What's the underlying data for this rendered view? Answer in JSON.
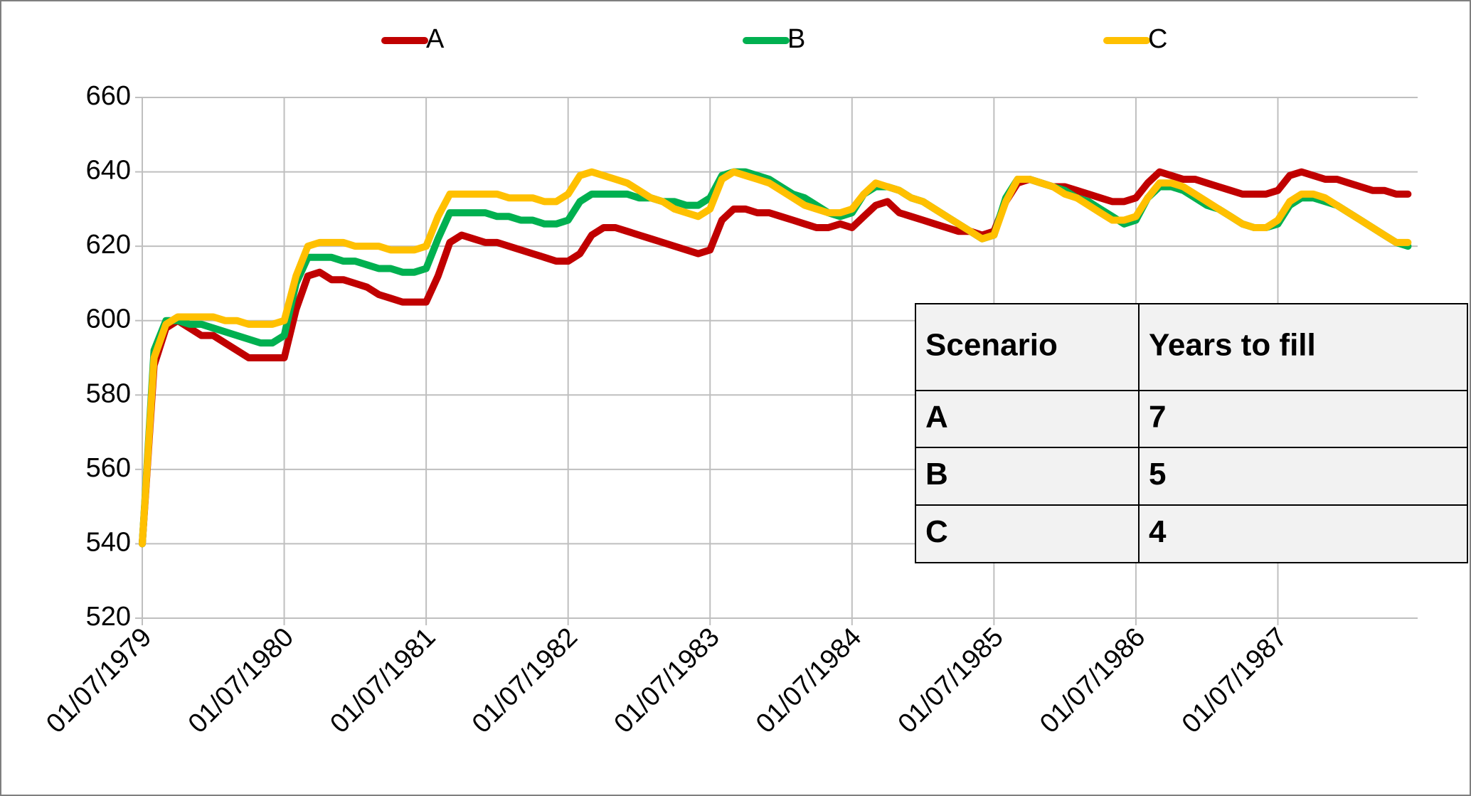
{
  "chart_data": {
    "type": "line",
    "categories": [
      "01/07/1979",
      null,
      null,
      null,
      null,
      null,
      null,
      null,
      null,
      null,
      null,
      null,
      "01/07/1980",
      null,
      null,
      null,
      null,
      null,
      null,
      null,
      null,
      null,
      null,
      null,
      "01/07/1981",
      null,
      null,
      null,
      null,
      null,
      null,
      null,
      null,
      null,
      null,
      null,
      "01/07/1982",
      null,
      null,
      null,
      null,
      null,
      null,
      null,
      null,
      null,
      null,
      null,
      "01/07/1983",
      null,
      null,
      null,
      null,
      null,
      null,
      null,
      null,
      null,
      null,
      null,
      "01/07/1984",
      null,
      null,
      null,
      null,
      null,
      null,
      null,
      null,
      null,
      null,
      null,
      "01/07/1985",
      null,
      null,
      null,
      null,
      null,
      null,
      null,
      null,
      null,
      null,
      null,
      "01/07/1986",
      null,
      null,
      null,
      null,
      null,
      null,
      null,
      null,
      null,
      null,
      null,
      "01/07/1987",
      null,
      null,
      null,
      null,
      null,
      null,
      null,
      null,
      null,
      null,
      null
    ],
    "series": [
      {
        "name": "A",
        "color": "#c00000",
        "values": [
          540,
          588,
          598,
          600,
          598,
          596,
          596,
          594,
          592,
          590,
          590,
          590,
          590,
          603,
          612,
          613,
          611,
          611,
          610,
          609,
          607,
          606,
          605,
          605,
          605,
          612,
          621,
          623,
          622,
          621,
          621,
          620,
          619,
          618,
          617,
          616,
          616,
          618,
          623,
          625,
          625,
          624,
          623,
          622,
          621,
          620,
          619,
          618,
          619,
          627,
          630,
          630,
          629,
          629,
          628,
          627,
          626,
          625,
          625,
          626,
          625,
          628,
          631,
          632,
          629,
          628,
          627,
          626,
          625,
          624,
          624,
          623,
          624,
          632,
          637,
          638,
          637,
          636,
          636,
          635,
          634,
          633,
          632,
          632,
          633,
          637,
          640,
          639,
          638,
          638,
          637,
          636,
          635,
          634,
          634,
          634,
          635,
          639,
          640,
          639,
          638,
          638,
          637,
          636,
          635,
          635,
          634,
          634
        ]
      },
      {
        "name": "B",
        "color": "#00b050",
        "values": [
          540,
          592,
          600,
          600,
          599,
          599,
          598,
          597,
          596,
          595,
          594,
          594,
          596,
          610,
          617,
          617,
          617,
          616,
          616,
          615,
          614,
          614,
          613,
          613,
          614,
          622,
          629,
          629,
          629,
          629,
          628,
          628,
          627,
          627,
          626,
          626,
          627,
          632,
          634,
          634,
          634,
          634,
          633,
          633,
          632,
          632,
          631,
          631,
          633,
          639,
          640,
          640,
          639,
          638,
          636,
          634,
          633,
          631,
          629,
          628,
          629,
          634,
          636,
          636,
          635,
          633,
          632,
          630,
          628,
          626,
          624,
          622,
          623,
          633,
          638,
          638,
          637,
          636,
          635,
          633,
          632,
          630,
          628,
          626,
          627,
          633,
          636,
          636,
          635,
          633,
          631,
          630,
          628,
          626,
          625,
          625,
          626,
          631,
          633,
          633,
          632,
          631,
          629,
          627,
          625,
          623,
          621,
          620
        ]
      },
      {
        "name": "C",
        "color": "#ffc000",
        "values": [
          540,
          590,
          599,
          601,
          601,
          601,
          601,
          600,
          600,
          599,
          599,
          599,
          600,
          612,
          620,
          621,
          621,
          621,
          620,
          620,
          620,
          619,
          619,
          619,
          620,
          628,
          634,
          634,
          634,
          634,
          634,
          633,
          633,
          633,
          632,
          632,
          634,
          639,
          640,
          639,
          638,
          637,
          635,
          633,
          632,
          630,
          629,
          628,
          630,
          638,
          640,
          639,
          638,
          637,
          635,
          633,
          631,
          630,
          629,
          629,
          630,
          634,
          637,
          636,
          635,
          633,
          632,
          630,
          628,
          626,
          624,
          622,
          623,
          632,
          638,
          638,
          637,
          636,
          634,
          633,
          631,
          629,
          627,
          627,
          628,
          633,
          637,
          637,
          636,
          634,
          632,
          630,
          628,
          626,
          625,
          625,
          627,
          632,
          634,
          634,
          633,
          631,
          629,
          627,
          625,
          623,
          621,
          621
        ]
      }
    ],
    "ylim": [
      520,
      660
    ],
    "yticks": [
      520,
      540,
      560,
      580,
      600,
      620,
      640,
      660
    ],
    "grid": true,
    "legend": "top"
  },
  "table": {
    "header": [
      "Scenario",
      "Years to fill"
    ],
    "rows": [
      [
        "A",
        7
      ],
      [
        "B",
        5
      ],
      [
        "C",
        4
      ]
    ]
  }
}
